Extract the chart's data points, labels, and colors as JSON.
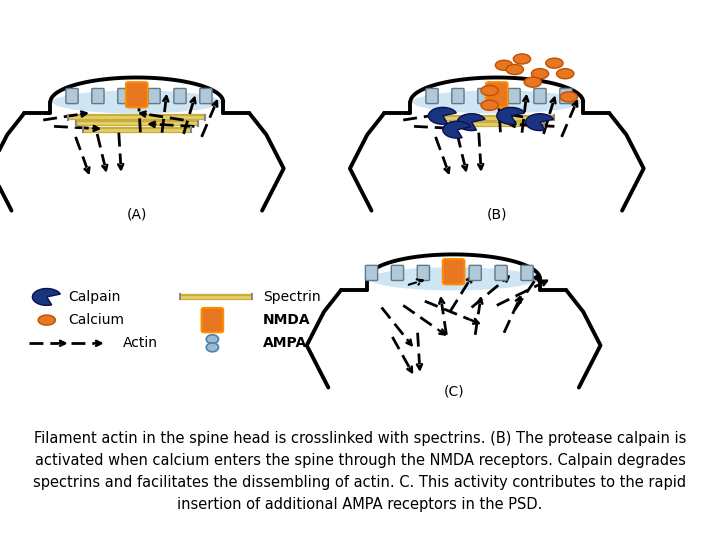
{
  "caption_line1": "Filament actin in the spine head is crosslinked with spectrins. (B) The protease calpain is",
  "caption_line2": "activated when calcium enters the spine through the NMDA receptors. Calpain degrades",
  "caption_line3": "spectrins and facilitates the dissembling of actin. C. This activity contributes to the rapid",
  "caption_line4": "insertion of additional AMPA receptors in the PSD.",
  "background_color": "#ffffff",
  "text_color": "#000000",
  "font_size": 10.5,
  "fig_width": 7.2,
  "fig_height": 5.4,
  "dpi": 100,
  "spine_outline_color": "#000000",
  "psd_fill_color": "#c8dff0",
  "nmda_color": "#E87722",
  "ampa_color": "#a0b8cc",
  "calpain_color": "#1a3580",
  "calcium_color": "#E87722",
  "spectrin_color": "#c8a830",
  "spectrin_highlight": "#e8d060",
  "actin_color": "#111111",
  "receptor_bar_color": "#b0c8d8",
  "receptor_bar_edge": "#607888"
}
